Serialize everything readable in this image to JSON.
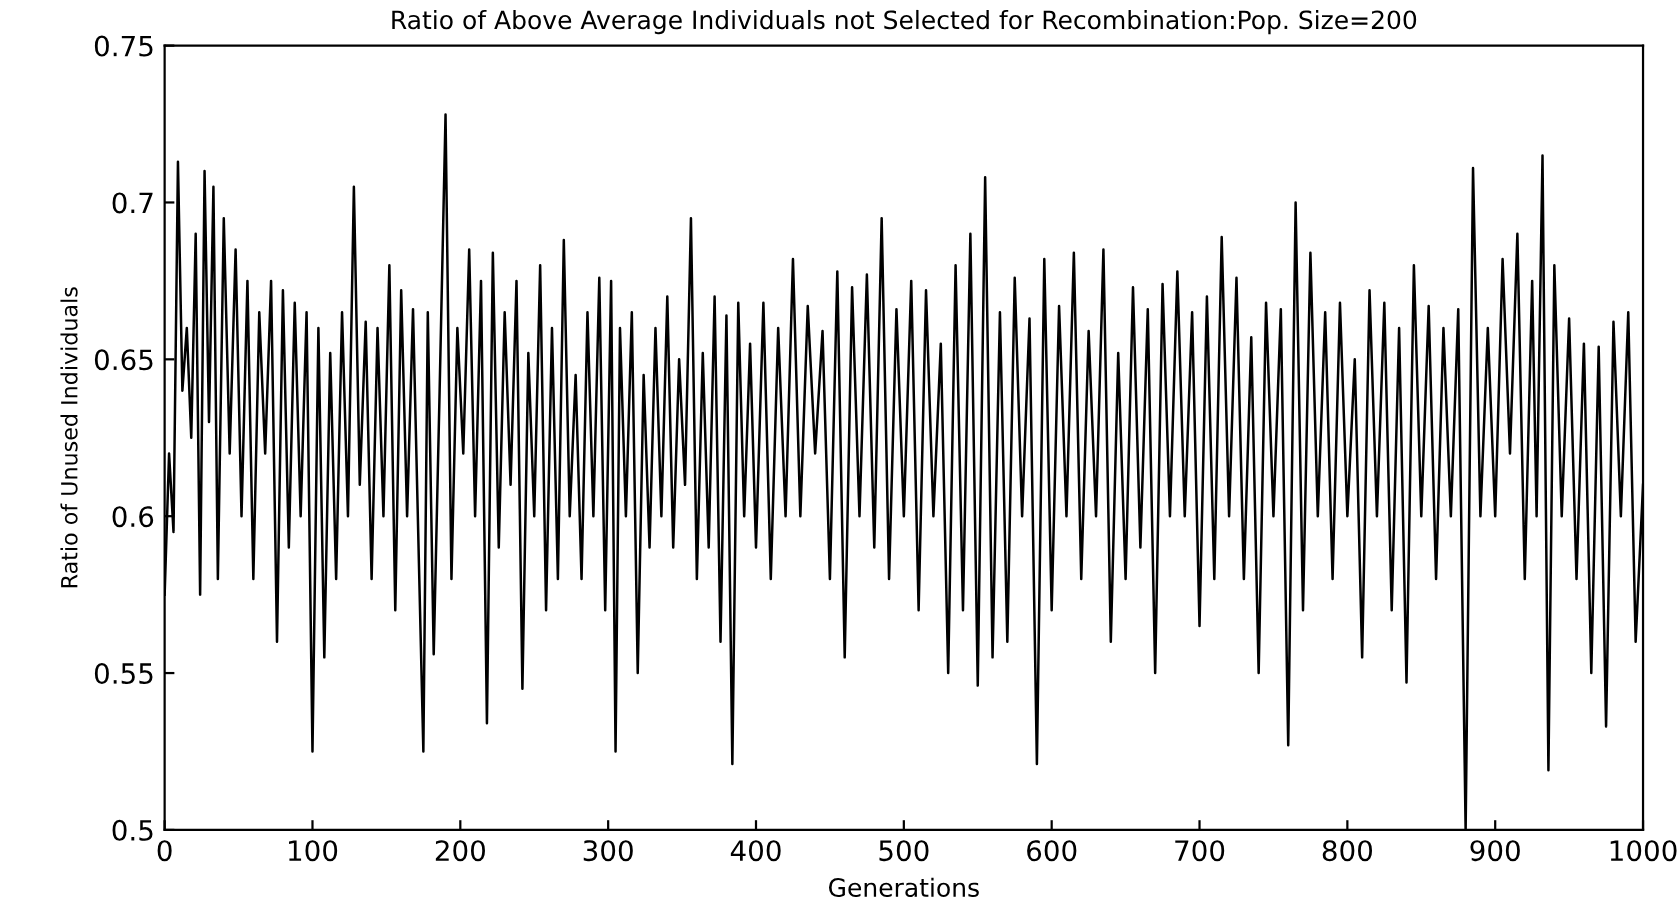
{
  "chart_data": {
    "type": "line",
    "title": "Ratio of Above Average Individuals not Selected for Recombination:Pop. Size=200",
    "xlabel": "Generations",
    "ylabel": "Ratio of Unused Individuals",
    "x": [
      0,
      3,
      6,
      9,
      12,
      15,
      18,
      21,
      24,
      27,
      30,
      33,
      36,
      40,
      44,
      48,
      52,
      56,
      60,
      64,
      68,
      72,
      76,
      80,
      84,
      88,
      92,
      96,
      100,
      104,
      108,
      112,
      116,
      120,
      124,
      128,
      132,
      136,
      140,
      144,
      148,
      152,
      156,
      160,
      164,
      168,
      172,
      175,
      178,
      182,
      186,
      190,
      194,
      198,
      202,
      206,
      210,
      214,
      218,
      222,
      226,
      230,
      234,
      238,
      242,
      246,
      250,
      254,
      258,
      262,
      266,
      270,
      274,
      278,
      282,
      286,
      290,
      294,
      298,
      302,
      305,
      308,
      312,
      316,
      320,
      324,
      328,
      332,
      336,
      340,
      344,
      348,
      352,
      356,
      360,
      364,
      368,
      372,
      376,
      380,
      384,
      388,
      392,
      396,
      400,
      405,
      410,
      415,
      420,
      425,
      430,
      435,
      440,
      445,
      450,
      455,
      460,
      465,
      470,
      475,
      480,
      485,
      490,
      495,
      500,
      505,
      510,
      515,
      520,
      525,
      530,
      535,
      540,
      545,
      550,
      555,
      560,
      565,
      570,
      575,
      580,
      585,
      590,
      595,
      600,
      605,
      610,
      615,
      620,
      625,
      630,
      635,
      640,
      645,
      650,
      655,
      660,
      665,
      670,
      675,
      680,
      685,
      690,
      695,
      700,
      705,
      710,
      715,
      720,
      725,
      730,
      735,
      740,
      745,
      750,
      755,
      760,
      765,
      770,
      775,
      780,
      785,
      790,
      795,
      800,
      805,
      810,
      815,
      820,
      825,
      830,
      835,
      840,
      845,
      850,
      855,
      860,
      865,
      870,
      875,
      880,
      885,
      890,
      895,
      900,
      905,
      910,
      915,
      920,
      925,
      928,
      932,
      936,
      940,
      945,
      950,
      955,
      960,
      965,
      970,
      975,
      980,
      985,
      990,
      995,
      1000
    ],
    "series": [
      {
        "color": "#000000",
        "values": [
          0.575,
          0.62,
          0.595,
          0.713,
          0.64,
          0.66,
          0.625,
          0.69,
          0.575,
          0.71,
          0.63,
          0.705,
          0.58,
          0.695,
          0.62,
          0.685,
          0.6,
          0.675,
          0.58,
          0.665,
          0.62,
          0.675,
          0.56,
          0.672,
          0.59,
          0.668,
          0.6,
          0.665,
          0.525,
          0.66,
          0.555,
          0.652,
          0.58,
          0.665,
          0.6,
          0.705,
          0.61,
          0.662,
          0.58,
          0.66,
          0.6,
          0.68,
          0.57,
          0.672,
          0.6,
          0.666,
          0.585,
          0.525,
          0.665,
          0.556,
          0.64,
          0.728,
          0.58,
          0.66,
          0.62,
          0.685,
          0.6,
          0.675,
          0.534,
          0.684,
          0.59,
          0.665,
          0.61,
          0.675,
          0.545,
          0.652,
          0.6,
          0.68,
          0.57,
          0.66,
          0.58,
          0.688,
          0.6,
          0.645,
          0.58,
          0.665,
          0.6,
          0.676,
          0.57,
          0.675,
          0.525,
          0.66,
          0.6,
          0.665,
          0.55,
          0.645,
          0.59,
          0.66,
          0.6,
          0.67,
          0.59,
          0.65,
          0.61,
          0.695,
          0.58,
          0.652,
          0.59,
          0.67,
          0.56,
          0.664,
          0.521,
          0.668,
          0.6,
          0.655,
          0.59,
          0.668,
          0.58,
          0.66,
          0.6,
          0.682,
          0.6,
          0.667,
          0.62,
          0.659,
          0.58,
          0.678,
          0.555,
          0.673,
          0.6,
          0.677,
          0.59,
          0.695,
          0.58,
          0.666,
          0.6,
          0.675,
          0.57,
          0.672,
          0.6,
          0.655,
          0.55,
          0.68,
          0.57,
          0.69,
          0.546,
          0.708,
          0.555,
          0.665,
          0.56,
          0.676,
          0.6,
          0.663,
          0.521,
          0.682,
          0.57,
          0.667,
          0.6,
          0.684,
          0.58,
          0.659,
          0.6,
          0.685,
          0.56,
          0.652,
          0.58,
          0.673,
          0.59,
          0.666,
          0.55,
          0.674,
          0.6,
          0.678,
          0.6,
          0.665,
          0.565,
          0.67,
          0.58,
          0.689,
          0.6,
          0.676,
          0.58,
          0.657,
          0.55,
          0.668,
          0.6,
          0.666,
          0.527,
          0.7,
          0.57,
          0.684,
          0.6,
          0.665,
          0.58,
          0.668,
          0.6,
          0.65,
          0.555,
          0.672,
          0.6,
          0.668,
          0.57,
          0.66,
          0.547,
          0.68,
          0.6,
          0.667,
          0.58,
          0.66,
          0.6,
          0.666,
          0.5,
          0.711,
          0.6,
          0.66,
          0.6,
          0.682,
          0.62,
          0.69,
          0.58,
          0.675,
          0.6,
          0.715,
          0.519,
          0.68,
          0.6,
          0.663,
          0.58,
          0.655,
          0.55,
          0.654,
          0.533,
          0.662,
          0.6,
          0.665,
          0.56,
          0.61
        ]
      }
    ],
    "xlim": [
      0,
      1000
    ],
    "xticks": [
      0,
      100,
      200,
      300,
      400,
      500,
      600,
      700,
      800,
      900,
      1000
    ],
    "ylim": [
      0.5,
      0.75
    ],
    "yticks": [
      0.5,
      0.55,
      0.6,
      0.65,
      0.7,
      0.75
    ],
    "grid": false,
    "legend": false,
    "marker": "none",
    "line_style": "solid"
  }
}
